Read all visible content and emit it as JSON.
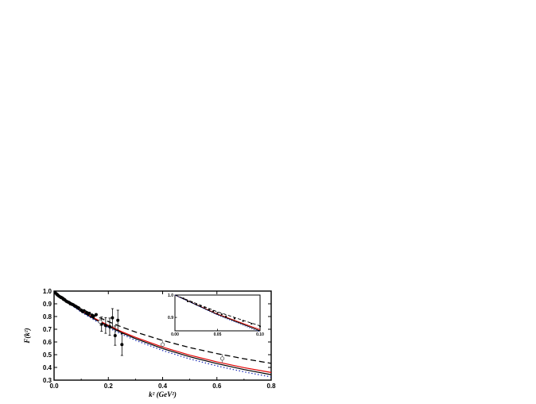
{
  "chart_data": {
    "type": "line",
    "title": "",
    "xlabel": "k² (GeV²)",
    "ylabel": "F(k²)",
    "xlim": [
      0.0,
      0.8
    ],
    "ylim": [
      0.3,
      1.0
    ],
    "x_ticks": [
      "0.0",
      "0.2",
      "0.4",
      "0.6",
      "0.8"
    ],
    "y_ticks": [
      "0.3",
      "0.4",
      "0.5",
      "0.6",
      "0.7",
      "0.8",
      "0.9",
      "1.0"
    ],
    "grid": false,
    "legend": "none",
    "series": [
      {
        "style": "solid",
        "color": "#e00000",
        "x": [
          0.0,
          0.05,
          0.1,
          0.15,
          0.2,
          0.25,
          0.3,
          0.4,
          0.5,
          0.6,
          0.7,
          0.8
        ],
        "y": [
          1.0,
          0.915,
          0.845,
          0.785,
          0.73,
          0.68,
          0.636,
          0.56,
          0.496,
          0.443,
          0.398,
          0.36
        ]
      },
      {
        "style": "solid",
        "color": "#000000",
        "x": [
          0.0,
          0.05,
          0.1,
          0.15,
          0.2,
          0.25,
          0.3,
          0.4,
          0.5,
          0.6,
          0.7,
          0.8
        ],
        "y": [
          1.0,
          0.913,
          0.84,
          0.778,
          0.722,
          0.671,
          0.626,
          0.548,
          0.484,
          0.43,
          0.383,
          0.343
        ]
      },
      {
        "style": "dashed",
        "color": "#000000",
        "x": [
          0.0,
          0.05,
          0.1,
          0.15,
          0.2,
          0.25,
          0.3,
          0.4,
          0.5,
          0.6,
          0.7,
          0.8
        ],
        "y": [
          1.0,
          0.925,
          0.862,
          0.808,
          0.76,
          0.717,
          0.678,
          0.612,
          0.556,
          0.509,
          0.468,
          0.432
        ]
      },
      {
        "style": "dotted",
        "color": "#2233bb",
        "x": [
          0.0,
          0.05,
          0.1,
          0.15,
          0.2,
          0.25,
          0.3,
          0.4,
          0.5,
          0.6,
          0.7,
          0.8
        ],
        "y": [
          1.0,
          0.91,
          0.835,
          0.77,
          0.712,
          0.66,
          0.613,
          0.533,
          0.467,
          0.412,
          0.365,
          0.325
        ]
      }
    ],
    "data_points": [
      {
        "x": 0.005,
        "y": 0.985
      },
      {
        "x": 0.01,
        "y": 0.975
      },
      {
        "x": 0.015,
        "y": 0.965
      },
      {
        "x": 0.02,
        "y": 0.958
      },
      {
        "x": 0.025,
        "y": 0.95
      },
      {
        "x": 0.03,
        "y": 0.945
      },
      {
        "x": 0.035,
        "y": 0.935
      },
      {
        "x": 0.04,
        "y": 0.93
      },
      {
        "x": 0.045,
        "y": 0.92
      },
      {
        "x": 0.05,
        "y": 0.915
      },
      {
        "x": 0.055,
        "y": 0.91
      },
      {
        "x": 0.06,
        "y": 0.9
      },
      {
        "x": 0.065,
        "y": 0.897
      },
      {
        "x": 0.07,
        "y": 0.893
      },
      {
        "x": 0.075,
        "y": 0.885
      },
      {
        "x": 0.08,
        "y": 0.88
      },
      {
        "x": 0.085,
        "y": 0.873
      },
      {
        "x": 0.09,
        "y": 0.868
      },
      {
        "x": 0.1,
        "y": 0.85
      },
      {
        "x": 0.105,
        "y": 0.84
      },
      {
        "x": 0.11,
        "y": 0.845
      },
      {
        "x": 0.12,
        "y": 0.83
      },
      {
        "x": 0.125,
        "y": 0.82
      },
      {
        "x": 0.13,
        "y": 0.825
      },
      {
        "x": 0.14,
        "y": 0.81
      },
      {
        "x": 0.145,
        "y": 0.8
      },
      {
        "x": 0.155,
        "y": 0.815
      },
      {
        "x": 0.175,
        "y": 0.74
      },
      {
        "x": 0.19,
        "y": 0.73
      },
      {
        "x": 0.205,
        "y": 0.72
      },
      {
        "x": 0.215,
        "y": 0.79
      },
      {
        "x": 0.225,
        "y": 0.65
      },
      {
        "x": 0.235,
        "y": 0.77
      },
      {
        "x": 0.25,
        "y": 0.58
      }
    ],
    "open_points": [
      {
        "x": 0.17,
        "y": 0.76
      },
      {
        "x": 0.4,
        "y": 0.58
      },
      {
        "x": 0.62,
        "y": 0.47
      }
    ],
    "inset": {
      "xlim": [
        0.0,
        0.1
      ],
      "ylim": [
        0.84,
        1.0
      ],
      "x_ticks": [
        "0.00",
        "0.05",
        "0.10"
      ],
      "y_ticks": [
        "0.9",
        "1.0"
      ],
      "points": [
        {
          "x": 0.01,
          "y": 0.985
        },
        {
          "x": 0.015,
          "y": 0.972
        },
        {
          "x": 0.02,
          "y": 0.968
        },
        {
          "x": 0.025,
          "y": 0.958
        },
        {
          "x": 0.03,
          "y": 0.95
        },
        {
          "x": 0.035,
          "y": 0.945
        },
        {
          "x": 0.04,
          "y": 0.935
        },
        {
          "x": 0.045,
          "y": 0.928
        },
        {
          "x": 0.05,
          "y": 0.92
        },
        {
          "x": 0.055,
          "y": 0.914
        },
        {
          "x": 0.06,
          "y": 0.905
        },
        {
          "x": 0.07,
          "y": 0.895
        },
        {
          "x": 0.08,
          "y": 0.884
        },
        {
          "x": 0.09,
          "y": 0.872
        },
        {
          "x": 0.1,
          "y": 0.86
        }
      ]
    }
  }
}
